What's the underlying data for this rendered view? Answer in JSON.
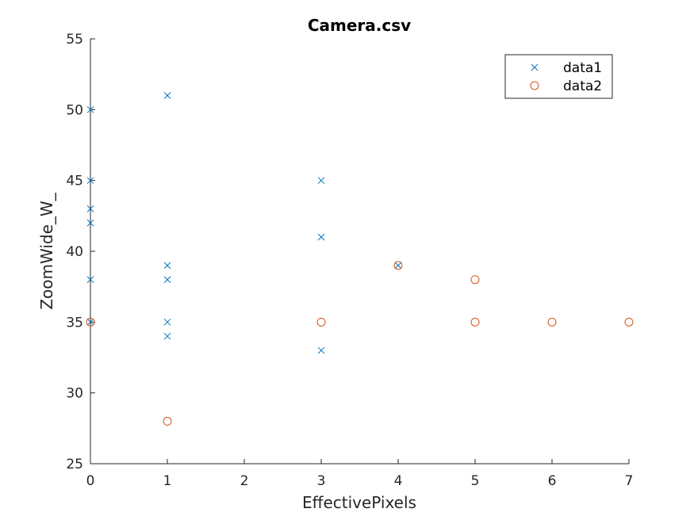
{
  "chart_data": {
    "type": "scatter",
    "title": "Camera.csv",
    "xlabel": "EffectivePixels",
    "ylabel": "ZoomWide_W_",
    "xlim": [
      0,
      7
    ],
    "ylim": [
      25,
      55
    ],
    "xticks": [
      0,
      1,
      2,
      3,
      4,
      5,
      6,
      7
    ],
    "yticks": [
      25,
      30,
      35,
      40,
      45,
      50,
      55
    ],
    "grid": false,
    "legend_position": "top-right",
    "series": [
      {
        "name": "data1",
        "marker": "x",
        "color": "#0072BD",
        "points": [
          [
            0,
            50
          ],
          [
            0,
            45
          ],
          [
            0,
            43
          ],
          [
            0,
            42
          ],
          [
            0,
            38
          ],
          [
            0,
            35
          ],
          [
            1,
            51
          ],
          [
            1,
            39
          ],
          [
            1,
            38
          ],
          [
            1,
            35
          ],
          [
            1,
            34
          ],
          [
            3,
            45
          ],
          [
            3,
            41
          ],
          [
            3,
            33
          ],
          [
            4,
            39
          ]
        ]
      },
      {
        "name": "data2",
        "marker": "o",
        "color": "#D95319",
        "points": [
          [
            0,
            35
          ],
          [
            1,
            28
          ],
          [
            3,
            35
          ],
          [
            4,
            39
          ],
          [
            5,
            38
          ],
          [
            5,
            35
          ],
          [
            6,
            35
          ],
          [
            7,
            35
          ]
        ]
      }
    ]
  }
}
